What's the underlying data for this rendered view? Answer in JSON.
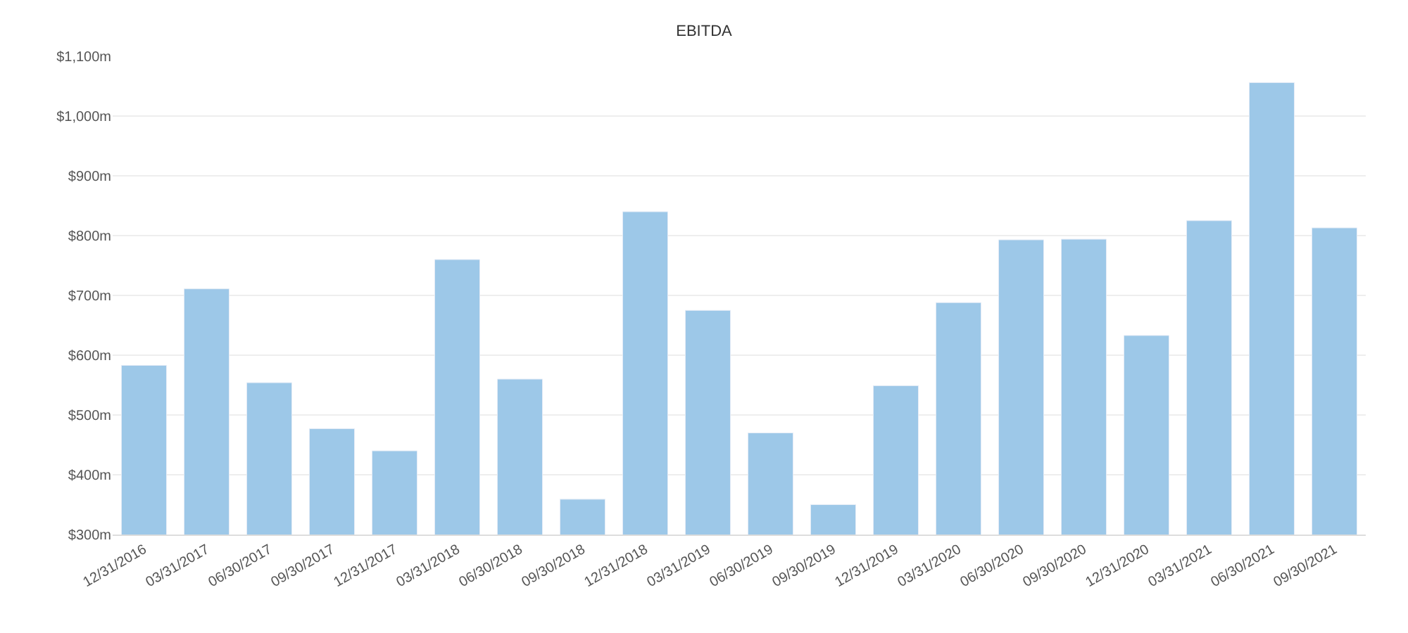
{
  "chart_data": {
    "type": "bar",
    "title": "EBITDA",
    "categories": [
      "12/31/2016",
      "03/31/2017",
      "06/30/2017",
      "09/30/2017",
      "12/31/2017",
      "03/31/2018",
      "06/30/2018",
      "09/30/2018",
      "12/31/2018",
      "03/31/2019",
      "06/30/2019",
      "09/30/2019",
      "12/31/2019",
      "03/31/2020",
      "06/30/2020",
      "09/30/2020",
      "12/31/2020",
      "03/31/2021",
      "06/30/2021",
      "09/30/2021"
    ],
    "values": [
      583,
      711,
      554,
      477,
      440,
      760,
      560,
      359,
      840,
      675,
      470,
      350,
      549,
      688,
      793,
      794,
      633,
      825,
      1056,
      813
    ],
    "color": "#9dc8e8",
    "ylim": [
      300,
      1100
    ],
    "yticks": [
      {
        "value": 300,
        "label": "$300m"
      },
      {
        "value": 400,
        "label": "$400m"
      },
      {
        "value": 500,
        "label": "$500m"
      },
      {
        "value": 600,
        "label": "$600m"
      },
      {
        "value": 700,
        "label": "$700m"
      },
      {
        "value": 800,
        "label": "$800m"
      },
      {
        "value": 900,
        "label": "$900m"
      },
      {
        "value": 1000,
        "label": "$1,000m"
      },
      {
        "value": 1100,
        "label": "$1,100m"
      }
    ],
    "grid": "y",
    "legend": false
  }
}
